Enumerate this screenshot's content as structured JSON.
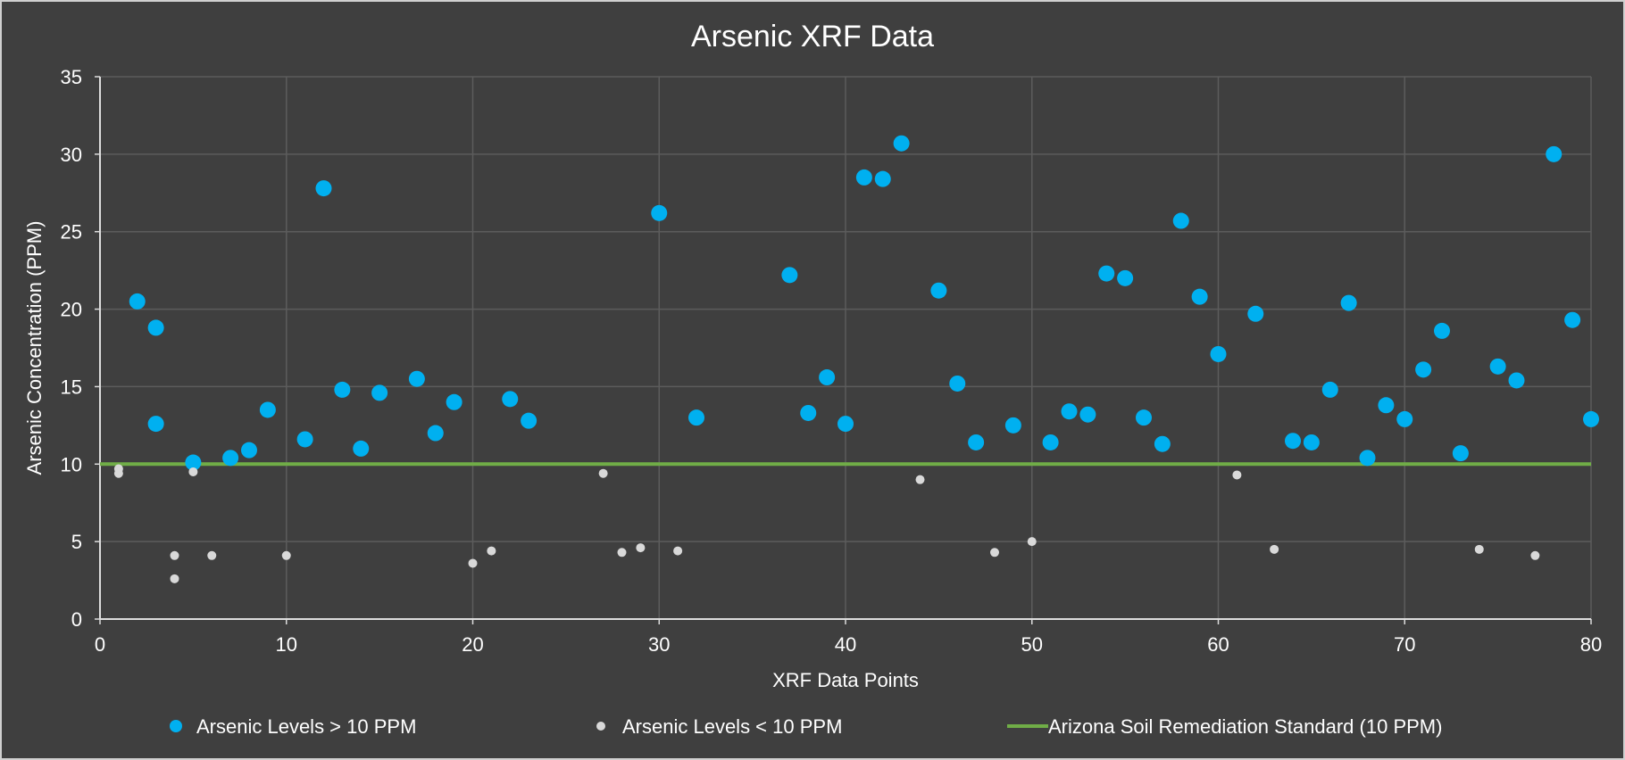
{
  "chart_data": {
    "type": "scatter",
    "title": "Arsenic XRF Data",
    "xlabel": "XRF Data Points",
    "ylabel": "Arsenic Concentration (PPM)",
    "xlim": [
      0,
      80
    ],
    "ylim": [
      0,
      35
    ],
    "x_ticks": [
      0,
      10,
      20,
      30,
      40,
      50,
      60,
      70,
      80
    ],
    "y_ticks": [
      0,
      5,
      10,
      15,
      20,
      25,
      30,
      35
    ],
    "grid": true,
    "legend_position": "bottom",
    "series": [
      {
        "name": "Arsenic Levels > 10 PPM",
        "color": "#00b0f0",
        "marker": "circle-large",
        "points": [
          [
            2,
            20.5
          ],
          [
            3,
            18.8
          ],
          [
            3,
            12.6
          ],
          [
            5,
            10.1
          ],
          [
            7,
            10.4
          ],
          [
            8,
            10.9
          ],
          [
            9,
            13.5
          ],
          [
            11,
            11.6
          ],
          [
            12,
            27.8
          ],
          [
            13,
            14.8
          ],
          [
            14,
            11.0
          ],
          [
            15,
            14.6
          ],
          [
            17,
            15.5
          ],
          [
            18,
            12.0
          ],
          [
            19,
            14.0
          ],
          [
            22,
            14.2
          ],
          [
            23,
            12.8
          ],
          [
            30,
            26.2
          ],
          [
            32,
            13.0
          ],
          [
            37,
            22.2
          ],
          [
            38,
            13.3
          ],
          [
            39,
            15.6
          ],
          [
            40,
            12.6
          ],
          [
            41,
            28.5
          ],
          [
            42,
            28.4
          ],
          [
            43,
            30.7
          ],
          [
            45,
            21.2
          ],
          [
            46,
            15.2
          ],
          [
            47,
            11.4
          ],
          [
            49,
            12.5
          ],
          [
            51,
            11.4
          ],
          [
            52,
            13.4
          ],
          [
            53,
            13.2
          ],
          [
            54,
            22.3
          ],
          [
            55,
            22.0
          ],
          [
            56,
            13.0
          ],
          [
            57,
            11.3
          ],
          [
            58,
            25.7
          ],
          [
            59,
            20.8
          ],
          [
            60,
            17.1
          ],
          [
            62,
            19.7
          ],
          [
            64,
            11.5
          ],
          [
            65,
            11.4
          ],
          [
            66,
            14.8
          ],
          [
            67,
            20.4
          ],
          [
            68,
            10.4
          ],
          [
            69,
            13.8
          ],
          [
            70,
            12.9
          ],
          [
            71,
            16.1
          ],
          [
            72,
            18.6
          ],
          [
            73,
            10.7
          ],
          [
            75,
            16.3
          ],
          [
            76,
            15.4
          ],
          [
            78,
            30.0
          ],
          [
            79,
            19.3
          ],
          [
            80,
            12.9
          ]
        ]
      },
      {
        "name": "Arsenic Levels < 10 PPM",
        "color": "#d9d9d9",
        "marker": "circle-small",
        "points": [
          [
            1,
            9.7
          ],
          [
            1,
            9.4
          ],
          [
            4,
            4.1
          ],
          [
            4,
            2.6
          ],
          [
            5,
            9.5
          ],
          [
            6,
            4.1
          ],
          [
            10,
            4.1
          ],
          [
            20,
            3.6
          ],
          [
            21,
            4.4
          ],
          [
            27,
            9.4
          ],
          [
            28,
            4.3
          ],
          [
            29,
            4.6
          ],
          [
            31,
            4.4
          ],
          [
            44,
            9.0
          ],
          [
            48,
            4.3
          ],
          [
            50,
            5.0
          ],
          [
            61,
            9.3
          ],
          [
            63,
            4.5
          ],
          [
            74,
            4.5
          ],
          [
            77,
            4.1
          ]
        ]
      },
      {
        "name": "Arizona Soil Remediation Standard (10 PPM)",
        "color": "#70ad47",
        "marker": "line",
        "points": [
          [
            0,
            10
          ],
          [
            80,
            10
          ]
        ]
      }
    ]
  }
}
